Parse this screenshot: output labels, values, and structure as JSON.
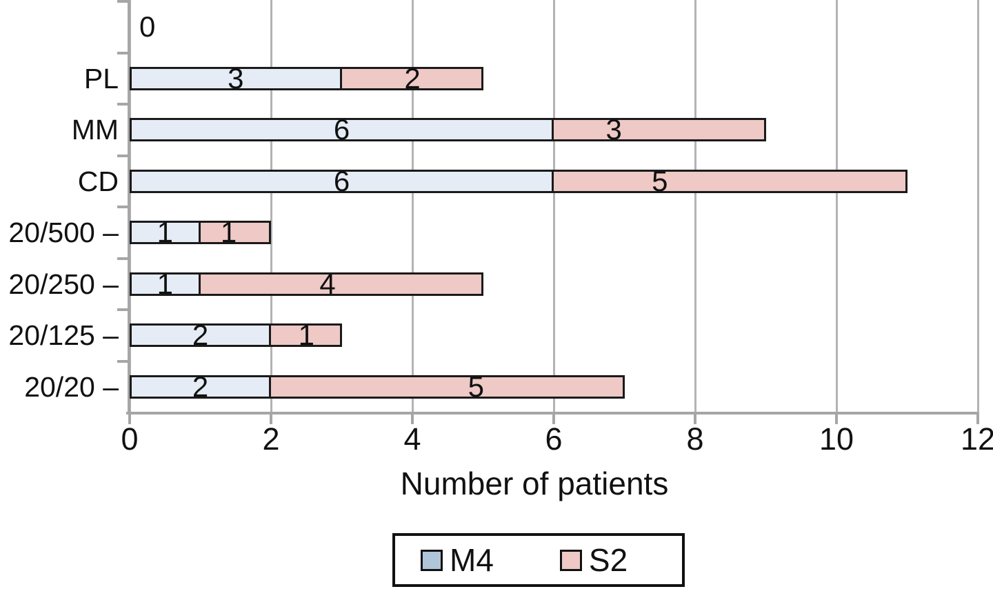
{
  "chart_data": {
    "type": "bar",
    "orientation": "horizontal",
    "stacked": true,
    "title": "",
    "xlabel": "Number of patients",
    "ylabel": "",
    "xlim": [
      0,
      12
    ],
    "xticks": [
      0,
      2,
      4,
      6,
      8,
      10,
      12
    ],
    "grid": "vertical",
    "legend_position": "bottom-center",
    "categories": [
      "",
      "PL",
      "MM",
      "CD",
      "20/500",
      "20/250",
      "20/125",
      "20/20"
    ],
    "tick_labels": [
      "",
      "PL",
      "MM",
      "CD",
      "20/500 –",
      "20/250 –",
      "20/125 –",
      "20/20 –"
    ],
    "series": [
      {
        "name": "M4",
        "color": "#e5ecf5",
        "legend_color": "#b1c5d8",
        "values": [
          0,
          3,
          6,
          6,
          1,
          1,
          2,
          2
        ]
      },
      {
        "name": "S2",
        "color": "#eec9c6",
        "legend_color": "#eec9c6",
        "values": [
          0,
          2,
          3,
          5,
          1,
          4,
          1,
          5
        ]
      }
    ],
    "totals": [
      0,
      5,
      9,
      11,
      2,
      5,
      3,
      7
    ],
    "zero_label": "0",
    "zero_label_x_unit": 0.25,
    "label_x_units": [
      [
        null,
        null
      ],
      [
        1.5,
        4.0
      ],
      [
        3.0,
        6.85
      ],
      [
        3.0,
        7.5
      ],
      [
        0.5,
        1.4
      ],
      [
        0.5,
        2.8
      ],
      [
        1.0,
        2.5
      ],
      [
        1.0,
        4.9
      ]
    ]
  },
  "colors": {
    "grid": "#b3b3b3",
    "axis": "#a6a6a6",
    "bar_border": "#1a1a1a",
    "text": "#111111",
    "legend_border": "#111111",
    "background": "#ffffff"
  }
}
